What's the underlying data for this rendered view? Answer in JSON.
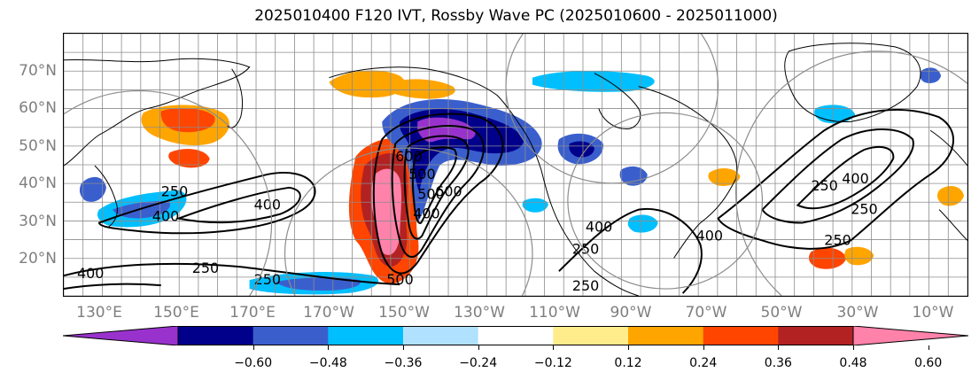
{
  "title": "2025010400 F120 IVT, Rossby Wave PC (2025010600 - 2025011000)",
  "axes": {
    "lat_ticks": [
      "70°N",
      "60°N",
      "50°N",
      "40°N",
      "30°N",
      "20°N"
    ],
    "lon_ticks": [
      "130°E",
      "150°E",
      "170°E",
      "170°W",
      "150°W",
      "130°W",
      "110°W",
      "90°W",
      "70°W",
      "50°W",
      "30°W",
      "10°W"
    ],
    "lat_range": [
      10,
      80
    ],
    "lon_range": [
      120,
      355
    ],
    "lat_label_color": "#7f7f7f",
    "lon_label_color": "#7f7f7f"
  },
  "colorbar": {
    "ticks": [
      "−0.60",
      "−0.48",
      "−0.36",
      "−0.24",
      "−0.12",
      "0.12",
      "0.24",
      "0.36",
      "0.48",
      "0.60"
    ],
    "colors": [
      "#9932cc",
      "#00008b",
      "#3a5fcd",
      "#00bfff",
      "#b0e2ff",
      "#ffffff",
      "#ffec8b",
      "#ffa500",
      "#ff4500",
      "#b22222",
      "#ff82ab"
    ]
  },
  "contour_labels": [
    "250",
    "400",
    "400",
    "250",
    "400",
    "500",
    "600",
    "400",
    "500",
    "600",
    "250",
    "250",
    "400",
    "500",
    "250",
    "400",
    "250",
    "250",
    "400",
    "250"
  ],
  "chart_data": {
    "type": "map",
    "title": "2025010400 F120 IVT, Rossby Wave PC (2025010600 - 2025011000)",
    "field": "Rossby Wave PC (shaded)",
    "contour_field": "IVT",
    "contour_levels_labeled": [
      250,
      400,
      500,
      600
    ],
    "colorbar_levels": [
      -0.6,
      -0.48,
      -0.36,
      -0.24,
      -0.12,
      0.12,
      0.24,
      0.36,
      0.48,
      0.6
    ],
    "colorbar_extend": "both",
    "lat_range": [
      10,
      80
    ],
    "lon_range": [
      "120°E",
      "5°W"
    ],
    "grid": true,
    "features": [
      {
        "region": "North Pacific 150°W-130°W, 25°N-55°N",
        "sign": "positive",
        "max": 0.6
      },
      {
        "region": "Gulf of Alaska / NE Pacific 145°W-120°W, 45°N-60°N",
        "sign": "negative",
        "min": -0.6
      },
      {
        "region": "NW Pacific 150°E-165°E, 55°N-62°N",
        "sign": "positive",
        "max": 0.48
      },
      {
        "region": "Bering Sea 170°E-160°W, 60°N-70°N",
        "sign": "positive",
        "max": 0.36
      },
      {
        "region": "Central US 100°W-90°W, 45°N-50°N",
        "sign": "negative",
        "min": -0.48
      },
      {
        "region": "W Pacific 140°E-160°E, 25°N-40°N",
        "sign": "negative",
        "min": -0.36
      },
      {
        "region": "Subtropical Pacific 175°W-150°W, 12°N-18°N",
        "sign": "negative",
        "min": -0.48
      }
    ]
  }
}
